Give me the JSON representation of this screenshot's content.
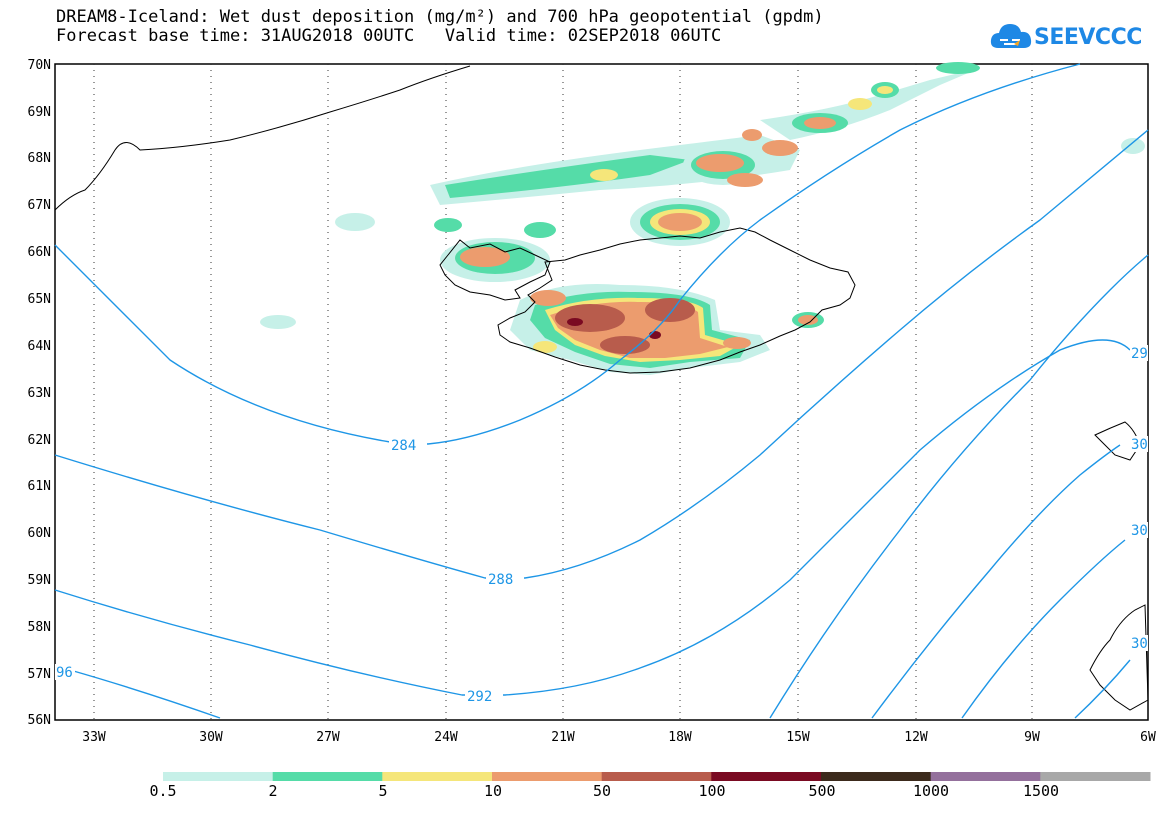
{
  "header": {
    "title_line1": "DREAM8-Iceland: Wet dust deposition (mg/m²) and 700 hPa geopotential (gpdm)",
    "title_line2": "Forecast base time: 31AUG2018 00UTC   Valid time: 02SEP2018 06UTC",
    "logo_text": "SEEVCCC"
  },
  "map": {
    "region": "Iceland and North Atlantic",
    "lat_labels": [
      "70N",
      "69N",
      "68N",
      "67N",
      "66N",
      "65N",
      "64N",
      "63N",
      "62N",
      "61N",
      "60N",
      "59N",
      "58N",
      "57N",
      "56N"
    ],
    "lon_labels": [
      "33W",
      "30W",
      "27W",
      "24W",
      "21W",
      "18W",
      "15W",
      "12W",
      "9W",
      "6W"
    ],
    "contour_labels": [
      "284",
      "288",
      "292",
      "96",
      "29",
      "30",
      "30",
      "30"
    ],
    "contour_color": "#1e96e6",
    "grid": "dotted"
  },
  "colorbar": {
    "levels": [
      "0.5",
      "2",
      "5",
      "10",
      "50",
      "100",
      "500",
      "1000",
      "1500"
    ],
    "colors": [
      "#c6f0e8",
      "#55dca8",
      "#f5e67a",
      "#ec9c6e",
      "#b85c4c",
      "#7a0a22",
      "#3c2a1c",
      "#94709c",
      "#a8a8a8"
    ]
  }
}
